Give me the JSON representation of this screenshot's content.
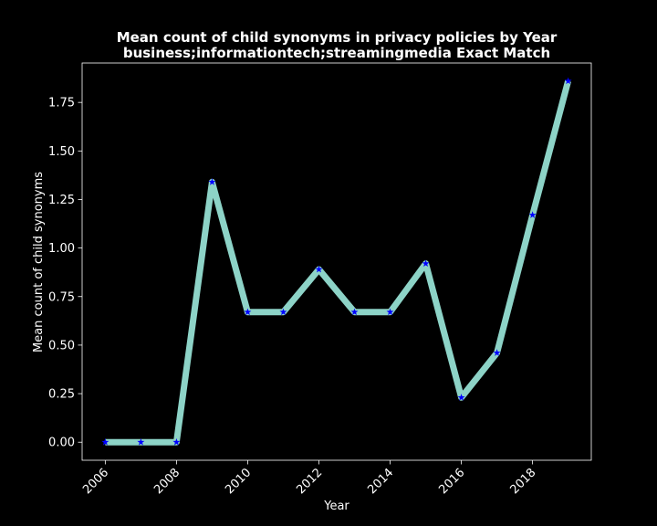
{
  "chart_data": {
    "type": "line",
    "title": "Mean count of child synonyms in privacy policies by Year",
    "subtitle": "business;informationtech;streamingmedia Exact Match",
    "xlabel": "Year",
    "ylabel": "Mean count of child synonyms",
    "x": [
      2006,
      2007,
      2008,
      2009,
      2010,
      2011,
      2012,
      2013,
      2014,
      2015,
      2016,
      2017,
      2018,
      2019
    ],
    "series": [
      {
        "values": [
          0.0,
          0.0,
          0.0,
          1.34,
          0.67,
          0.67,
          0.89,
          0.67,
          0.67,
          0.92,
          0.23,
          0.46,
          1.17,
          1.86
        ],
        "line_color": "#8dd3c7",
        "marker_color": "#0000ff",
        "marker": "star"
      }
    ],
    "xlim": [
      2005.35,
      2019.65
    ],
    "ylim": [
      -0.093,
      1.953
    ],
    "xticks": [
      "2006",
      "2008",
      "2010",
      "2012",
      "2014",
      "2016",
      "2018"
    ],
    "yticks": [
      "0.00",
      "0.25",
      "0.50",
      "0.75",
      "1.00",
      "1.25",
      "1.50",
      "1.75"
    ],
    "grid": false,
    "background": "#000000",
    "axes_color": "#ffffff"
  }
}
